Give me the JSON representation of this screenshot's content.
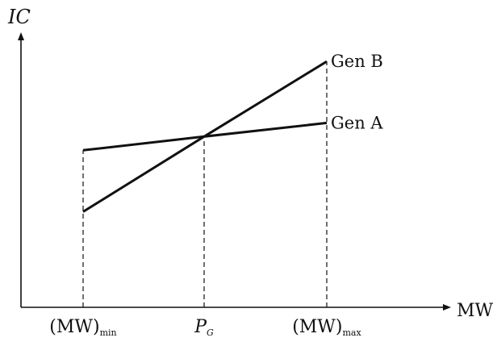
{
  "chart_data": {
    "type": "line",
    "title": "",
    "xlabel": "MW",
    "ylabel": "IC",
    "x": [
      "(MW)min",
      "PG",
      "(MW)max"
    ],
    "series": [
      {
        "name": "Gen A",
        "values": [
          2.3,
          2.5,
          2.7
        ]
      },
      {
        "name": "Gen B",
        "values": [
          1.4,
          2.5,
          3.6
        ]
      }
    ],
    "ylim": [
      0,
      4.5
    ],
    "grid": false,
    "legend": "line-end labels",
    "guides": "dashed vertical drops at each x tick",
    "x_ticks": [
      {
        "label": "(MW)",
        "sub": "min"
      },
      {
        "label": "P",
        "sub": "G"
      },
      {
        "label": "(MW)",
        "sub": "max"
      }
    ],
    "line_color": "#111111"
  }
}
